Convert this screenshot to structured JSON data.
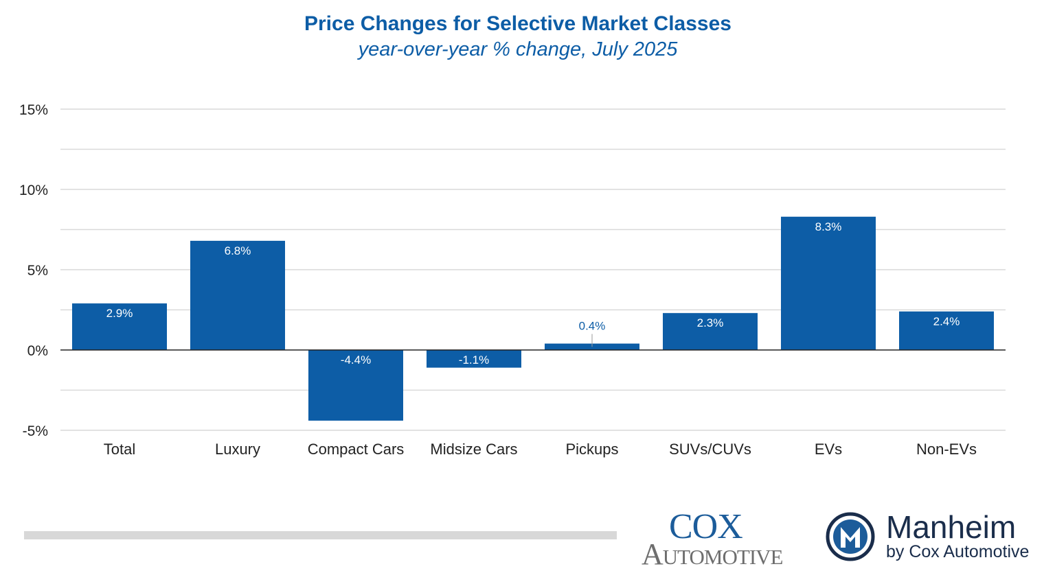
{
  "chart_data": {
    "type": "bar",
    "title": "Price Changes for Selective Market Classes",
    "subtitle": "year-over-year % change, July 2025",
    "categories": [
      "Total",
      "Luxury",
      "Compact Cars",
      "Midsize Cars",
      "Pickups",
      "SUVs/CUVs",
      "EVs",
      "Non-EVs"
    ],
    "values": [
      2.9,
      6.8,
      -4.4,
      -1.1,
      0.4,
      2.3,
      8.3,
      2.4
    ],
    "data_labels": [
      "2.9%",
      "6.8%",
      "-4.4%",
      "-1.1%",
      "0.4%",
      "2.3%",
      "8.3%",
      "2.4%"
    ],
    "ylim": [
      -5,
      15
    ],
    "yticks": [
      -5,
      0,
      5,
      10,
      15
    ],
    "ytick_labels": [
      "-5%",
      "0%",
      "5%",
      "10%",
      "15%"
    ],
    "minor_gridlines": [
      -2.5,
      2.5,
      7.5,
      12.5
    ],
    "xlabel": "",
    "ylabel": "",
    "grid": true,
    "legend": "none",
    "bar_color": "#0d5da6",
    "label_color_inside": "#ffffff",
    "label_color_outside": "#0d5da6",
    "title_color": "#0d5da6"
  },
  "logos": {
    "cox": {
      "line1": "Cox",
      "line2": "Automotive"
    },
    "manheim": {
      "name": "Manheim",
      "tagline": "by Cox Automotive",
      "mark_letter": "M"
    }
  }
}
